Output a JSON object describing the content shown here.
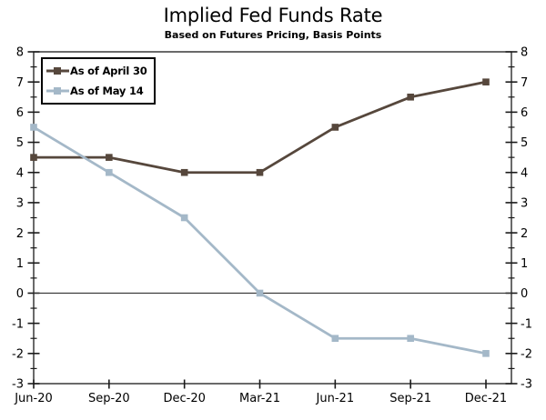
{
  "chart_data": {
    "type": "line",
    "title": "Implied Fed Funds Rate",
    "subtitle": "Based on Futures Pricing, Basis Points",
    "categories": [
      "Jun-20",
      "Sep-20",
      "Dec-20",
      "Mar-21",
      "Jun-21",
      "Sep-21",
      "Dec-21"
    ],
    "series": [
      {
        "name": "As of April 30",
        "color": "#56473C",
        "values": [
          4.5,
          4.5,
          4.0,
          4.0,
          5.5,
          6.5,
          7.0
        ]
      },
      {
        "name": "As of May 14",
        "color": "#A4B8C8",
        "values": [
          5.5,
          4.0,
          2.5,
          0.0,
          -1.5,
          -1.5,
          -2.0
        ]
      }
    ],
    "ylim": [
      -3,
      8
    ],
    "ytick_major": 1,
    "ytick_minor": 0.5,
    "y_axis_sides": [
      "left",
      "right"
    ],
    "xlabel": "",
    "ylabel": "",
    "grid": false,
    "zero_line": true,
    "legend_position": "top-left",
    "marker": "square",
    "axis_color": "#1a1a1a",
    "zero_line_color": "#333333"
  }
}
